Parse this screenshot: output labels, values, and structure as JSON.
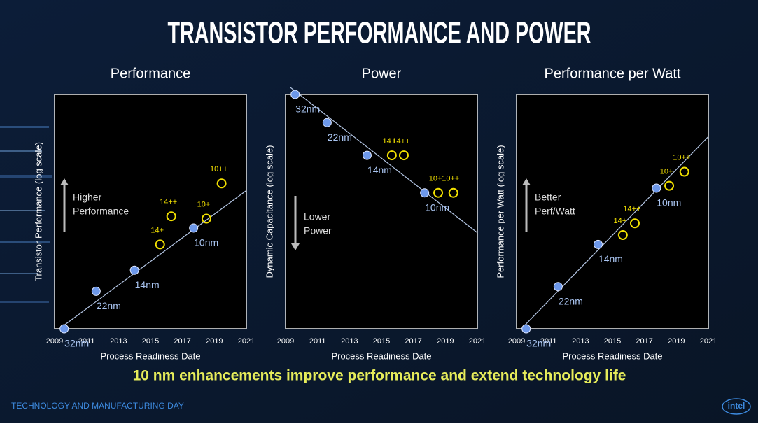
{
  "title": "TRANSISTOR PERFORMANCE AND POWER",
  "chart_data": [
    {
      "type": "scatter",
      "title": "Performance",
      "y_label": "Transistor Performance (log scale)",
      "x_label": "Process Readiness Date",
      "xlim": [
        2009,
        2021
      ],
      "xticks": [
        2009,
        2011,
        2013,
        2015,
        2017,
        2019,
        2021
      ],
      "ylim": [
        0,
        100
      ],
      "log_scale_y": true,
      "annotation": [
        "Higher",
        "Performance"
      ],
      "annotation_direction": "up",
      "trend": {
        "color": "#b4c6e4",
        "x": [
          2009.3,
          2021
        ],
        "values": [
          0,
          59
        ]
      },
      "series": [
        {
          "color": "#6d98ea",
          "filled": true,
          "x": [
            2009.6,
            2011.6,
            2014.0,
            2017.7
          ],
          "values": [
            0,
            16,
            25,
            43
          ],
          "labels": [
            "32nm",
            "22nm",
            "14nm",
            "10nm"
          ]
        },
        {
          "color": "#f2e000",
          "filled": false,
          "x": [
            2015.6,
            2016.3,
            2018.5,
            2019.45
          ],
          "values": [
            36,
            48,
            47,
            62
          ],
          "labels": [
            "14+",
            "14++",
            "10+",
            "10++"
          ]
        }
      ]
    },
    {
      "type": "scatter",
      "title": "Power",
      "y_label": "Dynamic Capacitance (log scale)",
      "x_label": "Process Readiness Date",
      "xlim": [
        2009,
        2021
      ],
      "xticks": [
        2009,
        2011,
        2013,
        2015,
        2017,
        2019,
        2021
      ],
      "ylim": [
        0,
        100
      ],
      "log_scale_y": true,
      "annotation": [
        "Lower",
        "Power"
      ],
      "annotation_direction": "down",
      "trend": {
        "color": "#b4c6e4",
        "x": [
          2009.3,
          2021
        ],
        "values": [
          103,
          41
        ]
      },
      "series": [
        {
          "color": "#6d98ea",
          "filled": true,
          "x": [
            2009.6,
            2011.6,
            2014.1,
            2017.7
          ],
          "values": [
            100,
            88,
            74,
            58
          ],
          "labels": [
            "32nm",
            "22nm",
            "14nm",
            "10nm"
          ]
        },
        {
          "color": "#f2e000",
          "filled": false,
          "x": [
            2015.65,
            2016.4,
            2018.55,
            2019.5
          ],
          "values": [
            74,
            74,
            58,
            58
          ],
          "labels": [
            "14+",
            "14++",
            "10+",
            "10++"
          ]
        }
      ]
    },
    {
      "type": "scatter",
      "title": "Performance per Watt",
      "y_label": "Performance per Watt (log scale)",
      "x_label": "Process Readiness Date",
      "xlim": [
        2009,
        2021
      ],
      "xticks": [
        2009,
        2011,
        2013,
        2015,
        2017,
        2019,
        2021
      ],
      "ylim": [
        0,
        100
      ],
      "log_scale_y": true,
      "annotation": [
        "Better",
        "Perf/Watt"
      ],
      "annotation_direction": "up",
      "trend": {
        "color": "#b4c6e4",
        "x": [
          2009.3,
          2021
        ],
        "values": [
          0,
          82
        ]
      },
      "series": [
        {
          "color": "#6d98ea",
          "filled": true,
          "x": [
            2009.6,
            2011.6,
            2014.1,
            2017.75
          ],
          "values": [
            0,
            18,
            36,
            60
          ],
          "labels": [
            "32nm",
            "22nm",
            "14nm",
            "10nm"
          ]
        },
        {
          "color": "#f2e000",
          "filled": false,
          "x": [
            2015.65,
            2016.4,
            2018.55,
            2019.5
          ],
          "values": [
            40,
            45,
            61,
            67
          ],
          "labels": [
            "14+",
            "14++",
            "10+",
            "10++"
          ]
        }
      ]
    }
  ],
  "headline": "10 nm enhancements improve performance and extend technology life",
  "footer": "TECHNOLOGY AND MANUFACTURING DAY",
  "logo": "intel"
}
